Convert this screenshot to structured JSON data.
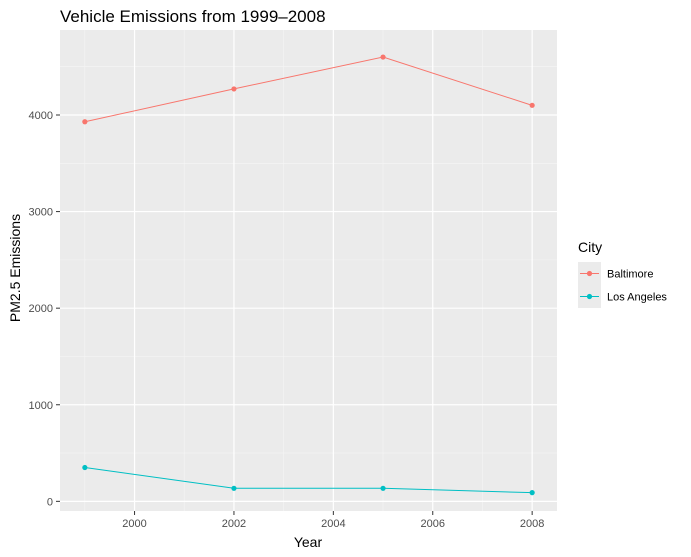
{
  "chart_data": {
    "type": "line",
    "title": "Vehicle Emissions from 1999–2008",
    "xlabel": "Year",
    "ylabel": "PM2.5 Emissions",
    "xlim": [
      1998.5,
      2008.5
    ],
    "ylim": [
      -100,
      4880
    ],
    "x_ticks": [
      2000,
      2002,
      2004,
      2006,
      2008
    ],
    "y_ticks": [
      0,
      1000,
      2000,
      3000,
      4000
    ],
    "grid": true,
    "legend": {
      "title": "City",
      "placement": "right"
    },
    "series": [
      {
        "name": "Baltimore",
        "color": "#F8766D",
        "x": [
          1999,
          2002,
          2005,
          2008
        ],
        "y": [
          3930,
          4270,
          4600,
          4100
        ]
      },
      {
        "name": "Los Angeles",
        "color": "#00BFC4",
        "x": [
          1999,
          2002,
          2005,
          2008
        ],
        "y": [
          350,
          135,
          135,
          90
        ]
      }
    ]
  }
}
